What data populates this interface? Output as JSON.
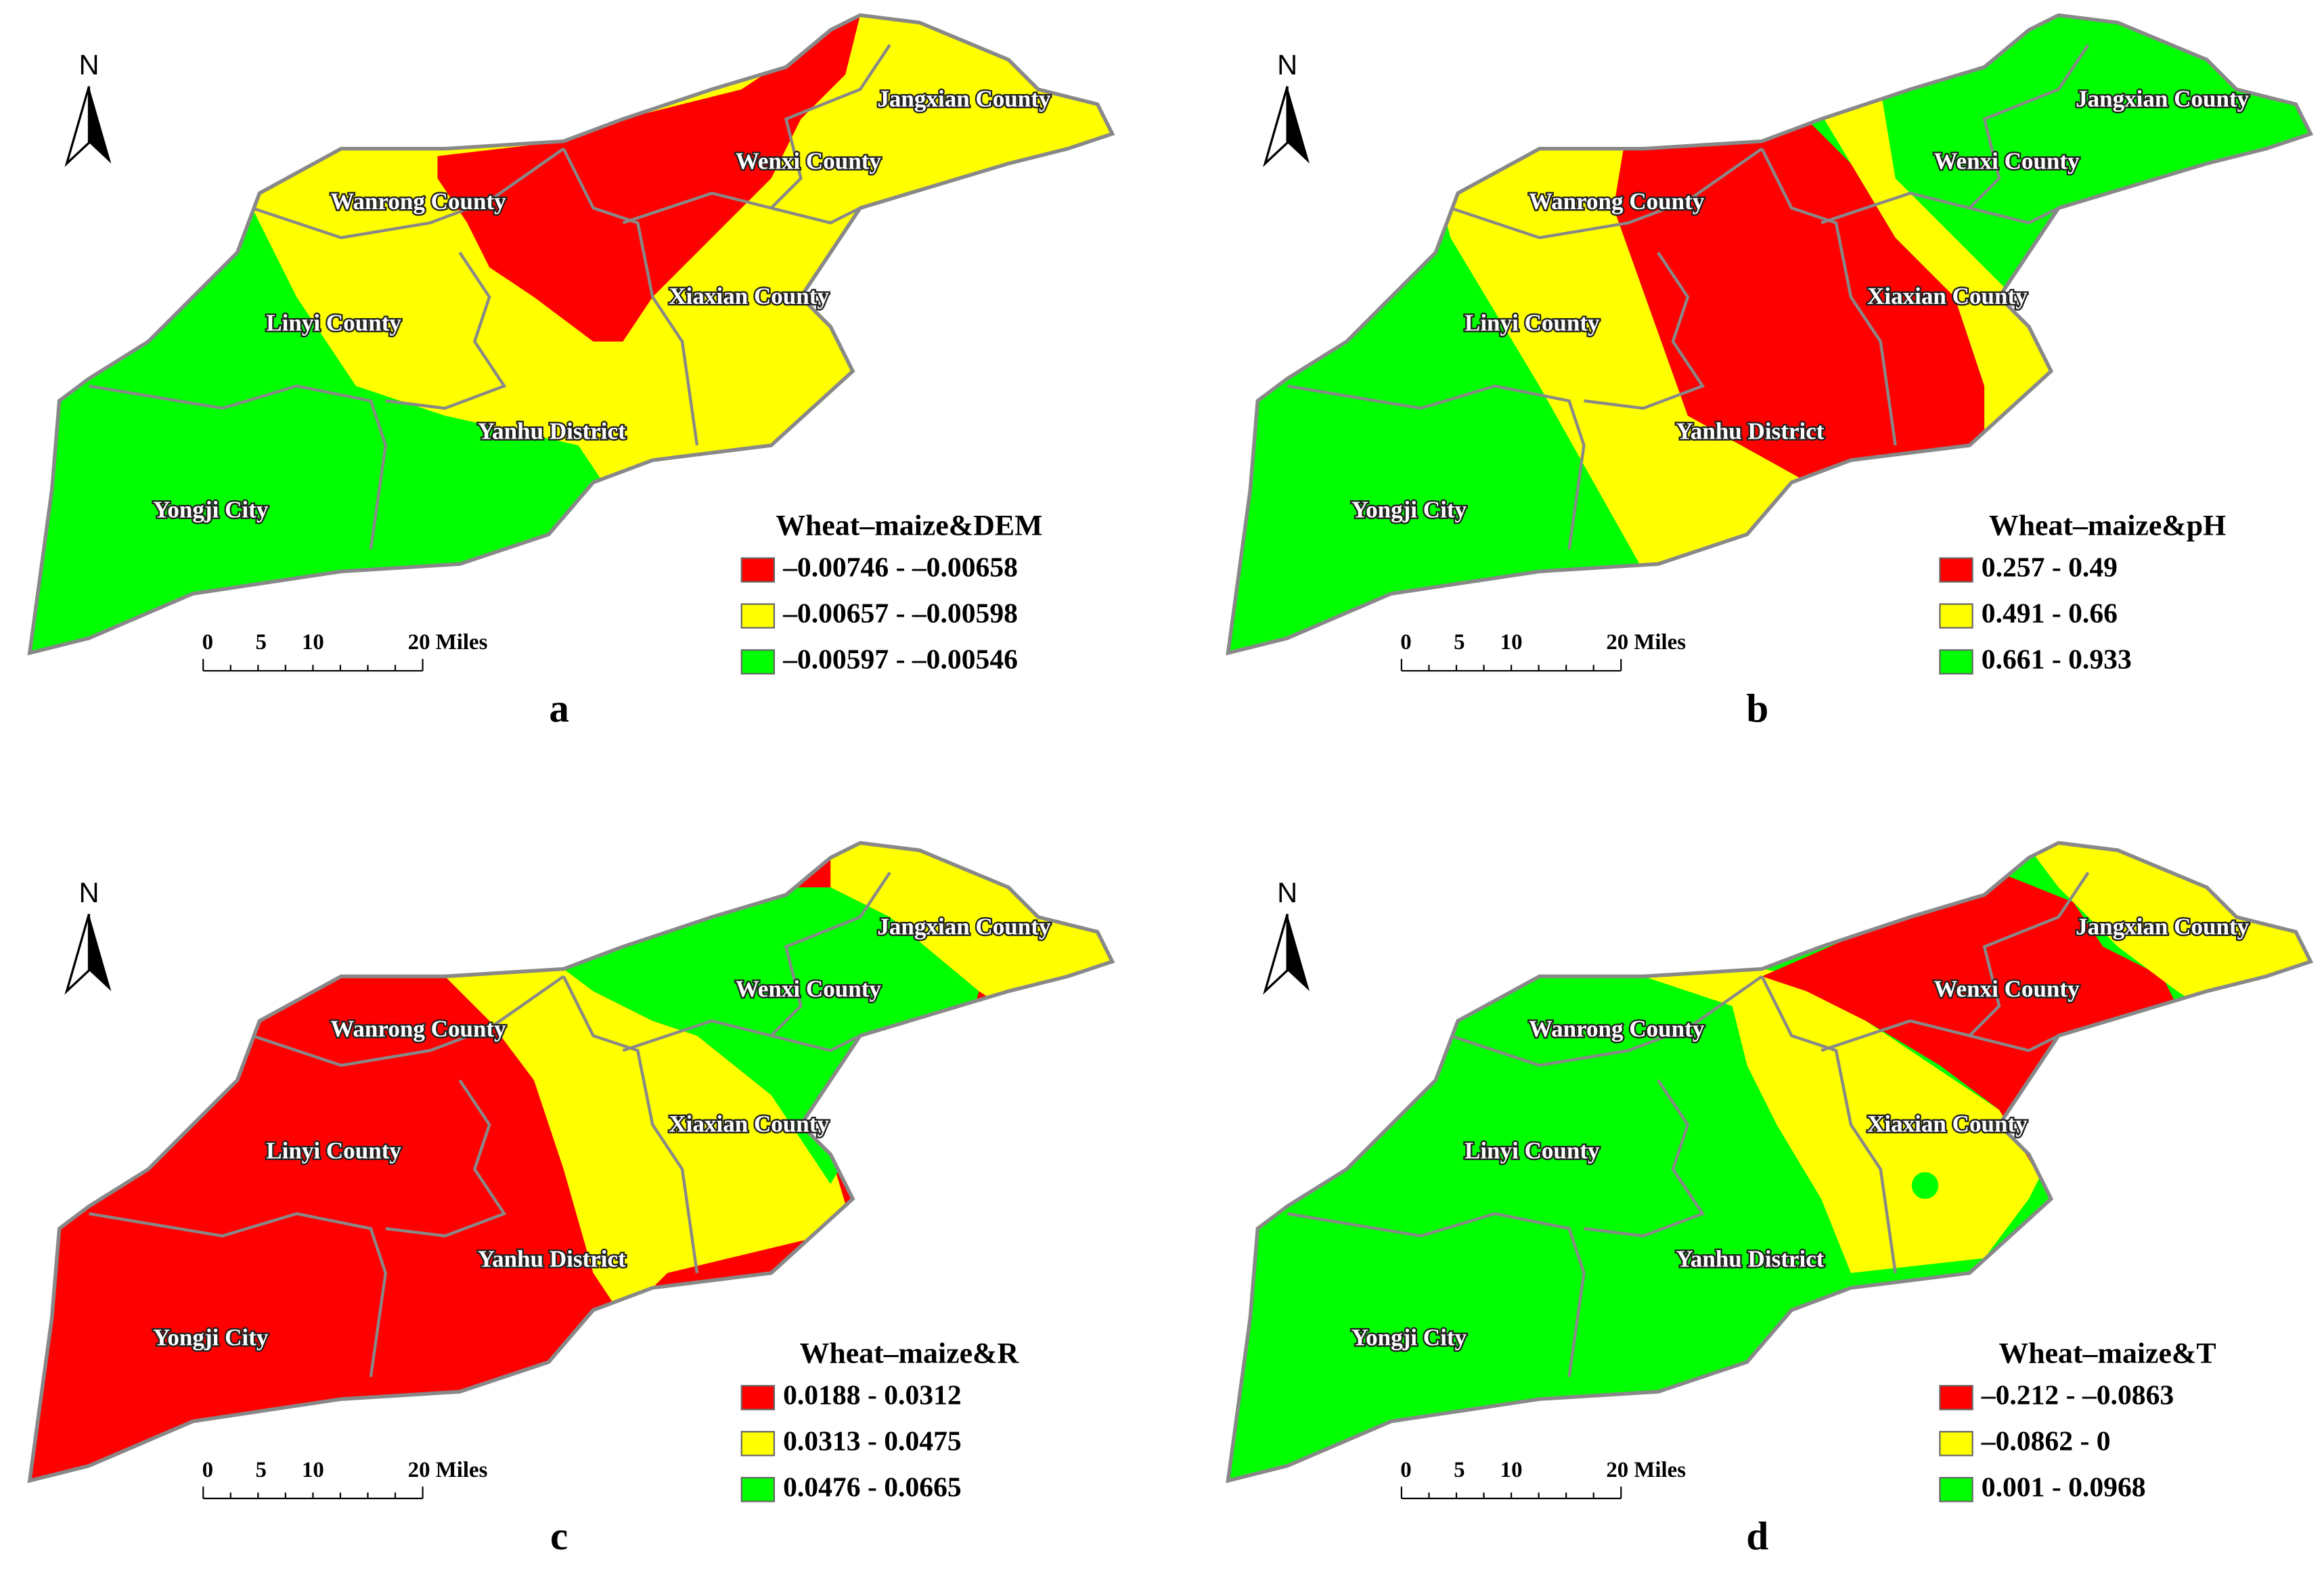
{
  "north": "N",
  "scale_bar": [
    "0",
    "5",
    "10",
    "20 Miles"
  ],
  "counties": [
    "Jangxian County",
    "Wenxi County",
    "Wanrong County",
    "Xiaxian County",
    "Linyi County",
    "Yanhu District",
    "Yongji City"
  ],
  "panels": [
    {
      "letter": "a",
      "legend": {
        "title": "Wheat–maize&DEM",
        "items": [
          {
            "label": "–0.00746 - –0.00658",
            "color": "#ff0000"
          },
          {
            "label": "–0.00657 - –0.00598",
            "color": "#ffff00"
          },
          {
            "label": "–0.00597 - –0.00546",
            "color": "#00ff00"
          }
        ]
      }
    },
    {
      "letter": "b",
      "legend": {
        "title": "Wheat–maize&pH",
        "items": [
          {
            "label": "0.257 - 0.49",
            "color": "#ff0000"
          },
          {
            "label": "0.491 - 0.66",
            "color": "#ffff00"
          },
          {
            "label": "0.661 - 0.933",
            "color": "#00ff00"
          }
        ]
      }
    },
    {
      "letter": "c",
      "legend": {
        "title": "Wheat–maize&R",
        "items": [
          {
            "label": "0.0188 - 0.0312",
            "color": "#ff0000"
          },
          {
            "label": "0.0313 - 0.0475",
            "color": "#ffff00"
          },
          {
            "label": "0.0476 - 0.0665",
            "color": "#00ff00"
          }
        ]
      }
    },
    {
      "letter": "d",
      "legend": {
        "title": "Wheat–maize&T",
        "items": [
          {
            "label": "–0.212 - –0.0863",
            "color": "#ff0000"
          },
          {
            "label": "–0.0862 - 0",
            "color": "#ffff00"
          },
          {
            "label": "0.001 - 0.0968",
            "color": "#00ff00"
          }
        ]
      }
    }
  ]
}
